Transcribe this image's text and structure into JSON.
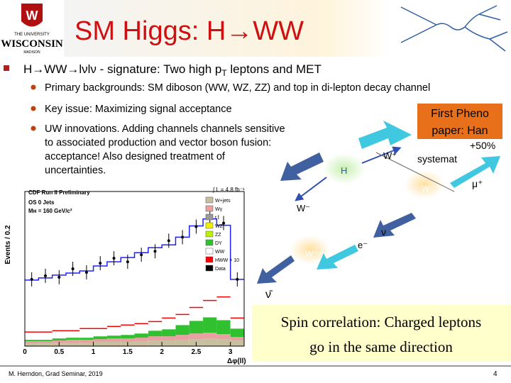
{
  "header": {
    "title": "SM Higgs: H→WW",
    "logo": [
      "THE UNIVERSITY",
      "WISCONSIN",
      "MADISON"
    ]
  },
  "main_bullet": [
    "H→WW→lνlν - signature: Two high p",
    "T",
    " leptons and MET"
  ],
  "sub_bullets": [
    [
      "Primary backgrounds: SM diboson (WW, WZ, ZZ) and top in di-lepton decay channel"
    ],
    [
      "Key issue: Maximizing signal acceptance"
    ],
    [
      "UW innovations.  Adding channels channels sensitive",
      "to associated production and vector boson fusion:",
      "acceptance! Also designed treatment of",
      "uncertainties."
    ]
  ],
  "callout": [
    "First Pheno",
    "paper: Han"
  ],
  "hidden_text": [
    "+50%",
    "systemat"
  ],
  "diagram_labels": {
    "w_plus": "W⁺",
    "h": "H",
    "w_minus_faded": "W⁻",
    "mu_plus": "μ⁺",
    "w_minus": "W⁻",
    "nu": "ν",
    "e_minus": "e⁻",
    "w_minus_lower": "W⁻",
    "nu_bar": "ν̄"
  },
  "spin_box": [
    "Spin correlation: Charged leptons",
    "go in the same direction"
  ],
  "footer": {
    "author": "M. Herndon, Grad Seminar, 2019",
    "page": "4"
  },
  "plot": {
    "title": "CDF Run II Preliminary",
    "channel": "OS 0 Jets",
    "mass": "Mʜ = 160 GeV/c²",
    "lumi": "∫ L = 4.8 fb⁻¹",
    "ylabel": "Events / 0.2",
    "xlabel": "Δφ(ll)",
    "xlim": [
      0,
      3.2
    ],
    "ylim": [
      0,
      220
    ],
    "xticks": [
      0,
      0.5,
      1,
      1.5,
      2,
      2.5,
      3
    ],
    "bins": [
      0,
      0.2,
      0.4,
      0.6,
      0.8,
      1.0,
      1.2,
      1.4,
      1.6,
      1.8,
      2.0,
      2.2,
      2.4,
      2.6,
      2.8,
      3.0,
      3.2
    ],
    "legend": [
      "W+jets",
      "Wγ",
      "t t̄",
      "WZ",
      "ZZ",
      "DY",
      "WW",
      "HWW × 10",
      "Data"
    ],
    "legend_colors": [
      "#c8bfa0",
      "#e8a0a0",
      "#999999",
      "#f0f000",
      "#c0f000",
      "#30c030",
      "#ffffff",
      "#ff0000",
      "#000000"
    ],
    "stack": [
      {
        "name_index": 0,
        "color": "#c8bfa0",
        "values": [
          4,
          4,
          5,
          5,
          5,
          6,
          6,
          6,
          7,
          8,
          8,
          9,
          10,
          11,
          10,
          8
        ]
      },
      {
        "name_index": 1,
        "color": "#e8a0a0",
        "values": [
          3,
          3,
          3,
          4,
          4,
          4,
          5,
          5,
          5,
          6,
          6,
          7,
          8,
          8,
          7,
          5
        ]
      },
      {
        "name_index": 5,
        "color": "#30c030",
        "values": [
          2,
          2,
          3,
          3,
          3,
          4,
          4,
          5,
          6,
          8,
          10,
          14,
          18,
          22,
          20,
          12
        ]
      },
      {
        "name_index": 6,
        "color": "#ffffff",
        "values": [
          85,
          88,
          90,
          92,
          95,
          100,
          105,
          110,
          115,
          118,
          120,
          125,
          135,
          140,
          135,
          70
        ]
      }
    ],
    "signal": [
      20,
      20,
      22,
      22,
      25,
      25,
      28,
      30,
      32,
      35,
      40,
      45,
      55,
      65,
      70,
      40
    ],
    "data": [
      95,
      100,
      98,
      110,
      105,
      118,
      125,
      120,
      130,
      135,
      150,
      155,
      170,
      185,
      175,
      95
    ]
  }
}
